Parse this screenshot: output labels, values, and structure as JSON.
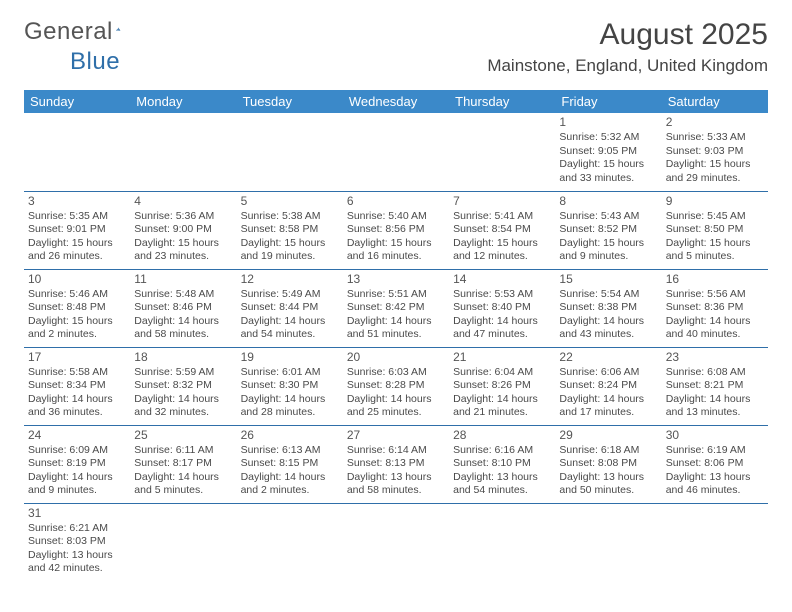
{
  "brand": {
    "part1": "General",
    "part2": "Blue"
  },
  "title": "August 2025",
  "location": "Mainstone, England, United Kingdom",
  "colors": {
    "header_bg": "#3b89c9",
    "header_text": "#ffffff",
    "cell_border": "#2f6fa9",
    "text": "#4a4a4a",
    "brand_blue": "#2f6fa9",
    "brand_gray": "#555555"
  },
  "typography": {
    "title_fontsize": 30,
    "location_fontsize": 17,
    "body_fontsize": 10.5,
    "daynum_fontsize": 12,
    "weekday_fontsize": 13
  },
  "weekdays": [
    "Sunday",
    "Monday",
    "Tuesday",
    "Wednesday",
    "Thursday",
    "Friday",
    "Saturday"
  ],
  "weeks": [
    [
      null,
      null,
      null,
      null,
      null,
      {
        "n": "1",
        "sunrise": "Sunrise: 5:32 AM",
        "sunset": "Sunset: 9:05 PM",
        "d1": "Daylight: 15 hours",
        "d2": "and 33 minutes."
      },
      {
        "n": "2",
        "sunrise": "Sunrise: 5:33 AM",
        "sunset": "Sunset: 9:03 PM",
        "d1": "Daylight: 15 hours",
        "d2": "and 29 minutes."
      }
    ],
    [
      {
        "n": "3",
        "sunrise": "Sunrise: 5:35 AM",
        "sunset": "Sunset: 9:01 PM",
        "d1": "Daylight: 15 hours",
        "d2": "and 26 minutes."
      },
      {
        "n": "4",
        "sunrise": "Sunrise: 5:36 AM",
        "sunset": "Sunset: 9:00 PM",
        "d1": "Daylight: 15 hours",
        "d2": "and 23 minutes."
      },
      {
        "n": "5",
        "sunrise": "Sunrise: 5:38 AM",
        "sunset": "Sunset: 8:58 PM",
        "d1": "Daylight: 15 hours",
        "d2": "and 19 minutes."
      },
      {
        "n": "6",
        "sunrise": "Sunrise: 5:40 AM",
        "sunset": "Sunset: 8:56 PM",
        "d1": "Daylight: 15 hours",
        "d2": "and 16 minutes."
      },
      {
        "n": "7",
        "sunrise": "Sunrise: 5:41 AM",
        "sunset": "Sunset: 8:54 PM",
        "d1": "Daylight: 15 hours",
        "d2": "and 12 minutes."
      },
      {
        "n": "8",
        "sunrise": "Sunrise: 5:43 AM",
        "sunset": "Sunset: 8:52 PM",
        "d1": "Daylight: 15 hours",
        "d2": "and 9 minutes."
      },
      {
        "n": "9",
        "sunrise": "Sunrise: 5:45 AM",
        "sunset": "Sunset: 8:50 PM",
        "d1": "Daylight: 15 hours",
        "d2": "and 5 minutes."
      }
    ],
    [
      {
        "n": "10",
        "sunrise": "Sunrise: 5:46 AM",
        "sunset": "Sunset: 8:48 PM",
        "d1": "Daylight: 15 hours",
        "d2": "and 2 minutes."
      },
      {
        "n": "11",
        "sunrise": "Sunrise: 5:48 AM",
        "sunset": "Sunset: 8:46 PM",
        "d1": "Daylight: 14 hours",
        "d2": "and 58 minutes."
      },
      {
        "n": "12",
        "sunrise": "Sunrise: 5:49 AM",
        "sunset": "Sunset: 8:44 PM",
        "d1": "Daylight: 14 hours",
        "d2": "and 54 minutes."
      },
      {
        "n": "13",
        "sunrise": "Sunrise: 5:51 AM",
        "sunset": "Sunset: 8:42 PM",
        "d1": "Daylight: 14 hours",
        "d2": "and 51 minutes."
      },
      {
        "n": "14",
        "sunrise": "Sunrise: 5:53 AM",
        "sunset": "Sunset: 8:40 PM",
        "d1": "Daylight: 14 hours",
        "d2": "and 47 minutes."
      },
      {
        "n": "15",
        "sunrise": "Sunrise: 5:54 AM",
        "sunset": "Sunset: 8:38 PM",
        "d1": "Daylight: 14 hours",
        "d2": "and 43 minutes."
      },
      {
        "n": "16",
        "sunrise": "Sunrise: 5:56 AM",
        "sunset": "Sunset: 8:36 PM",
        "d1": "Daylight: 14 hours",
        "d2": "and 40 minutes."
      }
    ],
    [
      {
        "n": "17",
        "sunrise": "Sunrise: 5:58 AM",
        "sunset": "Sunset: 8:34 PM",
        "d1": "Daylight: 14 hours",
        "d2": "and 36 minutes."
      },
      {
        "n": "18",
        "sunrise": "Sunrise: 5:59 AM",
        "sunset": "Sunset: 8:32 PM",
        "d1": "Daylight: 14 hours",
        "d2": "and 32 minutes."
      },
      {
        "n": "19",
        "sunrise": "Sunrise: 6:01 AM",
        "sunset": "Sunset: 8:30 PM",
        "d1": "Daylight: 14 hours",
        "d2": "and 28 minutes."
      },
      {
        "n": "20",
        "sunrise": "Sunrise: 6:03 AM",
        "sunset": "Sunset: 8:28 PM",
        "d1": "Daylight: 14 hours",
        "d2": "and 25 minutes."
      },
      {
        "n": "21",
        "sunrise": "Sunrise: 6:04 AM",
        "sunset": "Sunset: 8:26 PM",
        "d1": "Daylight: 14 hours",
        "d2": "and 21 minutes."
      },
      {
        "n": "22",
        "sunrise": "Sunrise: 6:06 AM",
        "sunset": "Sunset: 8:24 PM",
        "d1": "Daylight: 14 hours",
        "d2": "and 17 minutes."
      },
      {
        "n": "23",
        "sunrise": "Sunrise: 6:08 AM",
        "sunset": "Sunset: 8:21 PM",
        "d1": "Daylight: 14 hours",
        "d2": "and 13 minutes."
      }
    ],
    [
      {
        "n": "24",
        "sunrise": "Sunrise: 6:09 AM",
        "sunset": "Sunset: 8:19 PM",
        "d1": "Daylight: 14 hours",
        "d2": "and 9 minutes."
      },
      {
        "n": "25",
        "sunrise": "Sunrise: 6:11 AM",
        "sunset": "Sunset: 8:17 PM",
        "d1": "Daylight: 14 hours",
        "d2": "and 5 minutes."
      },
      {
        "n": "26",
        "sunrise": "Sunrise: 6:13 AM",
        "sunset": "Sunset: 8:15 PM",
        "d1": "Daylight: 14 hours",
        "d2": "and 2 minutes."
      },
      {
        "n": "27",
        "sunrise": "Sunrise: 6:14 AM",
        "sunset": "Sunset: 8:13 PM",
        "d1": "Daylight: 13 hours",
        "d2": "and 58 minutes."
      },
      {
        "n": "28",
        "sunrise": "Sunrise: 6:16 AM",
        "sunset": "Sunset: 8:10 PM",
        "d1": "Daylight: 13 hours",
        "d2": "and 54 minutes."
      },
      {
        "n": "29",
        "sunrise": "Sunrise: 6:18 AM",
        "sunset": "Sunset: 8:08 PM",
        "d1": "Daylight: 13 hours",
        "d2": "and 50 minutes."
      },
      {
        "n": "30",
        "sunrise": "Sunrise: 6:19 AM",
        "sunset": "Sunset: 8:06 PM",
        "d1": "Daylight: 13 hours",
        "d2": "and 46 minutes."
      }
    ],
    [
      {
        "n": "31",
        "sunrise": "Sunrise: 6:21 AM",
        "sunset": "Sunset: 8:03 PM",
        "d1": "Daylight: 13 hours",
        "d2": "and 42 minutes."
      },
      null,
      null,
      null,
      null,
      null,
      null
    ]
  ]
}
